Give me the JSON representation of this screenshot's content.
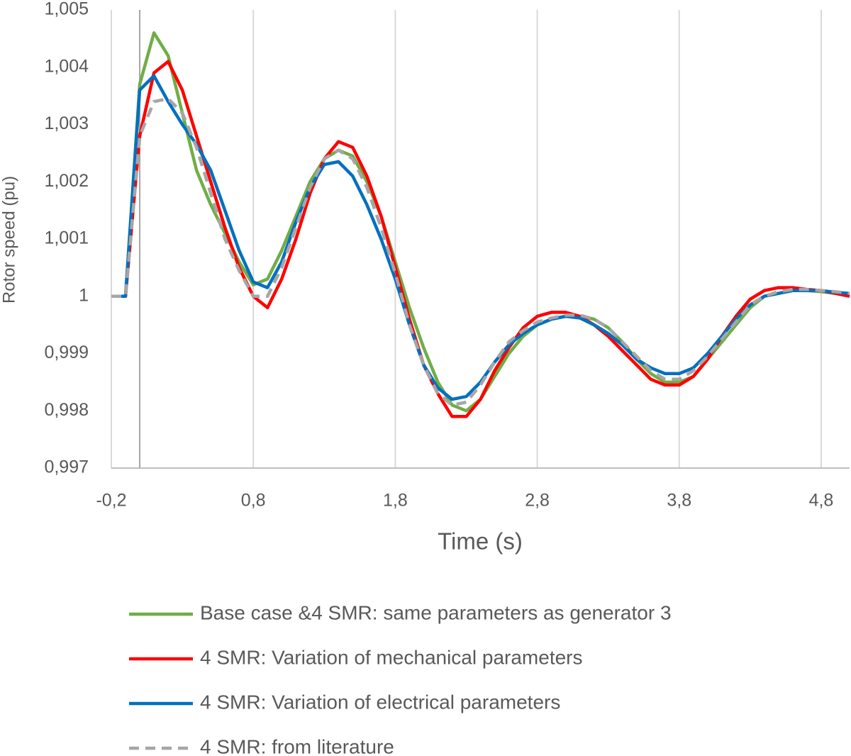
{
  "chart_data": {
    "type": "line",
    "x_label": "Time (s)",
    "y_label": "Rotor speed (pu)",
    "x": [
      -0.2,
      -0.1,
      0.0,
      0.1,
      0.2,
      0.3,
      0.4,
      0.5,
      0.6,
      0.7,
      0.8,
      0.9,
      1.0,
      1.1,
      1.2,
      1.3,
      1.4,
      1.5,
      1.6,
      1.7,
      1.8,
      1.9,
      2.0,
      2.1,
      2.2,
      2.3,
      2.4,
      2.5,
      2.6,
      2.7,
      2.8,
      2.9,
      3.0,
      3.1,
      3.2,
      3.3,
      3.4,
      3.5,
      3.6,
      3.7,
      3.8,
      3.9,
      4.0,
      4.1,
      4.2,
      4.3,
      4.4,
      4.5,
      4.6,
      4.7,
      4.8,
      4.9,
      5.0
    ],
    "series": [
      {
        "name": "Base case &4 SMR: same parameters as generator 3",
        "color": "#70ad47",
        "values": [
          1,
          1,
          1.0037,
          1.0046,
          1.0042,
          1.0032,
          1.0022,
          1.0016,
          1.0011,
          1.0006,
          1.0002,
          1.0003,
          1.0008,
          1.0014,
          1.002,
          1.0024,
          1.00255,
          1.00245,
          1.002,
          1.0014,
          1.0006,
          0.9998,
          0.9991,
          0.9985,
          0.9981,
          0.998,
          0.9982,
          0.9986,
          0.999,
          0.9993,
          0.9995,
          0.9996,
          0.99965,
          0.99965,
          0.9996,
          0.99945,
          0.9992,
          0.9989,
          0.99865,
          0.9985,
          0.9985,
          0.9986,
          0.9989,
          0.9992,
          0.9995,
          0.9998,
          1,
          1.00005,
          1.0001,
          1.0001,
          1.00008,
          1.00005,
          1
        ]
      },
      {
        "name": "4 SMR: Variation of mechanical parameters",
        "color": "#ff0000",
        "values": [
          1,
          1,
          1.0028,
          1.0039,
          1.0041,
          1.0036,
          1.0028,
          1.002,
          1.0012,
          1.0005,
          1,
          0.9998,
          1.0003,
          1.001,
          1.0018,
          1.0024,
          1.0027,
          1.0026,
          1.0021,
          1.0014,
          1.0005,
          0.9996,
          0.9988,
          0.9983,
          0.9979,
          0.9979,
          0.9982,
          0.9987,
          0.9991,
          0.99945,
          0.99965,
          0.99972,
          0.99972,
          0.99965,
          0.9995,
          0.9993,
          0.99905,
          0.9988,
          0.99855,
          0.99845,
          0.99845,
          0.9986,
          0.9989,
          0.9993,
          0.99965,
          0.99995,
          1.0001,
          1.00015,
          1.00015,
          1.00012,
          1.0001,
          1.00005,
          1
        ]
      },
      {
        "name": "4 SMR: Variation of electrical parameters",
        "color": "#0070c0",
        "values": [
          1,
          1,
          1.0036,
          1.00385,
          1.0034,
          1.003,
          1.00265,
          1.0022,
          1.0015,
          1.0008,
          1.00025,
          1.00015,
          1.0006,
          1.0013,
          1.0019,
          1.0023,
          1.00235,
          1.0021,
          1.0016,
          1.001,
          1.0003,
          0.9995,
          0.9988,
          0.9984,
          0.9982,
          0.99825,
          0.9985,
          0.99885,
          0.99915,
          0.99935,
          0.9995,
          0.9996,
          0.99965,
          0.99962,
          0.9995,
          0.99935,
          0.99915,
          0.9989,
          0.99875,
          0.99865,
          0.99865,
          0.99875,
          0.999,
          0.9993,
          0.9996,
          0.99985,
          1,
          1.00005,
          1.0001,
          1.0001,
          1.0001,
          1.00007,
          1.00005
        ]
      },
      {
        "name": "4 SMR: from literature",
        "color": "#a6a6a6",
        "dashed": true,
        "values": [
          1,
          1,
          1.0028,
          1.0034,
          1.00345,
          1.0032,
          1.0026,
          1.0018,
          1.001,
          1.00045,
          1,
          1,
          1.0005,
          1.0012,
          1.0019,
          1.0024,
          1.00255,
          1.0024,
          1.0019,
          1.0012,
          1.0004,
          0.9995,
          0.9988,
          0.9983,
          0.9981,
          0.99815,
          0.99845,
          0.99885,
          0.9992,
          0.9994,
          0.99955,
          0.99962,
          0.99967,
          0.99967,
          0.9996,
          0.99945,
          0.9992,
          0.99895,
          0.9987,
          0.99855,
          0.99855,
          0.9987,
          0.99895,
          0.99925,
          0.99955,
          0.99985,
          1,
          1.00008,
          1.00012,
          1.00012,
          1.0001,
          1.00008,
          1.00005
        ]
      }
    ],
    "xlim": [
      -0.2,
      5.0
    ],
    "xticks": [
      {
        "value": -0.2,
        "label": "-0,2"
      },
      {
        "value": 0.8,
        "label": "0,8"
      },
      {
        "value": 1.8,
        "label": "1,8"
      },
      {
        "value": 2.8,
        "label": "2,8"
      },
      {
        "value": 3.8,
        "label": "3,8"
      },
      {
        "value": 4.8,
        "label": "4,8"
      }
    ],
    "ylim": [
      0.997,
      1.005
    ],
    "yticks": [
      {
        "value": 0.997,
        "label": "0,997"
      },
      {
        "value": 0.998,
        "label": "0,998"
      },
      {
        "value": 0.999,
        "label": "0,999"
      },
      1,
      {
        "value": 1.001,
        "label": "1,001"
      },
      {
        "value": 1.002,
        "label": "1,002"
      },
      {
        "value": 1.003,
        "label": "1,003"
      },
      {
        "value": 1.004,
        "label": "1,004"
      },
      {
        "value": 1.005,
        "label": "1,005"
      }
    ],
    "y_axis_at_x": 0,
    "grid": "x",
    "legend": "bottom"
  }
}
